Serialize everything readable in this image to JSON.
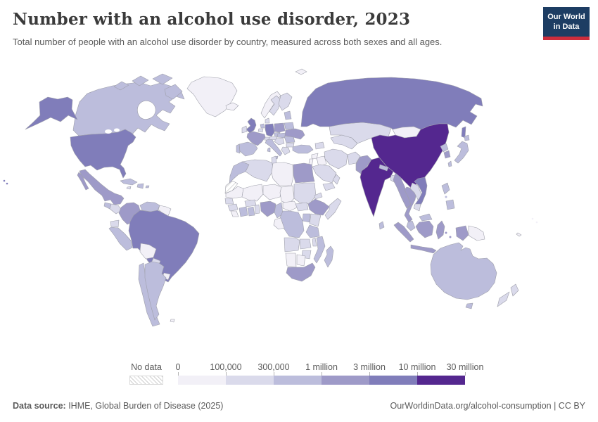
{
  "header": {
    "title": "Number with an alcohol use disorder, 2023",
    "subtitle": "Total number of people with an alcohol use disorder by country, measured across both sexes and all ages.",
    "logo": {
      "line1": "Our World",
      "line2": "in Data",
      "bg": "#1d3d63",
      "accent": "#cd2d3c"
    }
  },
  "legend": {
    "no_data_label": "No data",
    "tick_labels": [
      "0",
      "100,000",
      "300,000",
      "1 million",
      "3 million",
      "10 million",
      "30 million"
    ],
    "bins": [
      "#f2f0f7",
      "#dadaeb",
      "#bcbddc",
      "#9e9ac8",
      "#807dba",
      "#54278f"
    ]
  },
  "map": {
    "stroke": "#9fa0ab",
    "countries": {
      "greenland": 1,
      "iceland": 1,
      "canada": 3,
      "usa": 5,
      "mexico": 4,
      "guatemala": 3,
      "honduras-nicaragua": 2,
      "costarica-panama": 2,
      "cuba": 3,
      "jamaica": 2,
      "hispaniola": 3,
      "puerto-rico": 3,
      "colombia": 4,
      "venezuela": 3,
      "guyanas": 1,
      "ecuador": 2,
      "peru": 3,
      "brazil": 5,
      "bolivia": 1,
      "paraguay": 2,
      "uruguay": 1,
      "chile": 3,
      "argentina": 3,
      "falklands": 1,
      "svalbard": 1,
      "norway": 1,
      "sweden": 2,
      "finland": 2,
      "denmark": 2,
      "baltics": 3,
      "uk": 5,
      "ireland": 2,
      "netherlands": 3,
      "belgium": 2,
      "germany": 5,
      "france": 4,
      "spain": 3,
      "portugal": 3,
      "switzerland": 2,
      "italy": 3,
      "czechia": 3,
      "austria": 2,
      "poland": 4,
      "slovakia-hungary": 3,
      "balkans": 2,
      "romania": 3,
      "bulgaria": 2,
      "greece": 2,
      "belarus": 3,
      "ukraine": 4,
      "turkey": 3,
      "caucasus": 2,
      "syria": 1,
      "levant": 1,
      "iraq": 1,
      "iran": 2,
      "afghanistan": 2,
      "pakistan": 4,
      "central-asia": 2,
      "kazakhstan": 2,
      "saudi-arabia": 2,
      "yemen": 2,
      "oman": 2,
      "russia": 5,
      "mongolia": 1,
      "china": 6,
      "taiwan": 3,
      "north-korea": 3,
      "south-korea": 4,
      "japan": 3,
      "india": 6,
      "nepal": 3,
      "bangladesh": 2,
      "sri-lanka": 3,
      "myanmar": 4,
      "thailand": 4,
      "laos": 2,
      "vietnam": 5,
      "cambodia": 2,
      "malaysia": 3,
      "indonesia": 4,
      "papua-new-guinea": 1,
      "philippines": 3,
      "australia": 3,
      "tasmania": 3,
      "new-zealand": 2,
      "fiji": 1,
      "new-caledonia": 1,
      "morocco": 3,
      "western-sahara": 0,
      "algeria": 2,
      "tunisia": 2,
      "libya": 1,
      "egypt": 4,
      "mauritania": 1,
      "mali": 1,
      "niger": 1,
      "chad": 1,
      "sudan": 2,
      "eritrea": 2,
      "senegal": 2,
      "guinea": 2,
      "sierra-leone": 1,
      "ivory-coast": 3,
      "ghana": 3,
      "togo-benin": 2,
      "burkina-faso": 2,
      "nigeria": 4,
      "cameroon": 3,
      "car": 1,
      "south-sudan": 2,
      "ethiopia": 4,
      "somalia": 2,
      "kenya": 2,
      "uganda": 3,
      "drc": 3,
      "congo-gabon": 1,
      "tanzania": 3,
      "angola": 2,
      "zambia": 2,
      "malawi": 2,
      "mozambique": 3,
      "zimbabwe": 2,
      "namibia": 1,
      "botswana": 1,
      "south-africa": 4,
      "madagascar": 3
    }
  },
  "footer": {
    "source_label": "Data source:",
    "source_text": " IHME, Global Burden of Disease (2025)",
    "right_text": "OurWorldinData.org/alcohol-consumption | CC BY"
  }
}
